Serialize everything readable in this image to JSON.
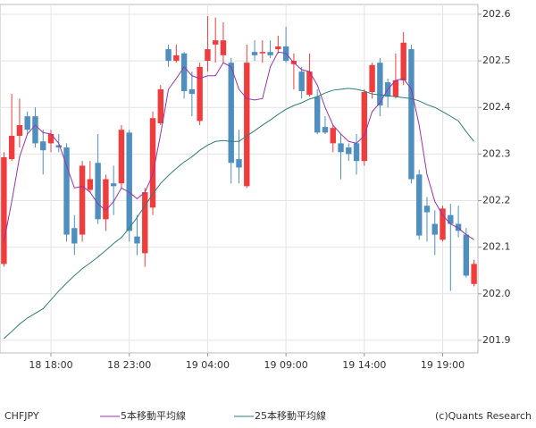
{
  "chart_data": {
    "type": "candlestick",
    "symbol": "CHFJPY",
    "credit": "(c)Quants Research",
    "categories": [
      null,
      null,
      null,
      null,
      null,
      null,
      "18 18:00",
      null,
      null,
      null,
      null,
      null,
      null,
      null,
      null,
      null,
      "18 23:00",
      null,
      null,
      null,
      null,
      null,
      null,
      null,
      null,
      null,
      "19 04:00",
      null,
      null,
      null,
      null,
      null,
      null,
      null,
      null,
      null,
      "19 09:00",
      null,
      null,
      null,
      null,
      null,
      null,
      null,
      null,
      null,
      "19 14:00",
      null,
      null,
      null,
      null,
      null,
      null,
      null,
      null,
      null,
      "19 19:00",
      null,
      null,
      null,
      null
    ],
    "up_color": "#f03c3c",
    "down_color": "#4f8fc0",
    "open": [
      202.064,
      202.289,
      202.339,
      202.381,
      202.381,
      202.327,
      202.323,
      202.319,
      202.314,
      202.141,
      202.127,
      202.223,
      202.281,
      202.16,
      202.237,
      202.237,
      202.346,
      202.123,
      202.087,
      202.185,
      202.366,
      202.525,
      202.5,
      202.516,
      202.439,
      202.371,
      202.5,
      202.535,
      202.512,
      202.496,
      202.289,
      202.231,
      202.519,
      202.516,
      202.519,
      202.525,
      202.531,
      202.493,
      202.477,
      202.427,
      202.423,
      202.358,
      202.323,
      202.323,
      202.314,
      202.323,
      202.285,
      202.433,
      202.496,
      202.454,
      202.423,
      202.458,
      202.525,
      202.256,
      202.189,
      202.15,
      202.116,
      202.169,
      202.15,
      202.127,
      202.021
    ],
    "high": [
      202.304,
      202.429,
      202.419,
      202.391,
      202.4,
      202.352,
      202.352,
      202.343,
      202.323,
      202.169,
      202.285,
      202.285,
      202.343,
      202.256,
      202.275,
      202.362,
      202.352,
      202.169,
      202.227,
      202.391,
      202.448,
      202.535,
      202.535,
      202.519,
      202.477,
      202.496,
      202.596,
      202.593,
      202.583,
      202.506,
      202.352,
      202.535,
      202.544,
      202.544,
      202.544,
      202.554,
      202.573,
      202.516,
      202.487,
      202.516,
      202.439,
      202.381,
      202.362,
      202.343,
      202.323,
      202.343,
      202.439,
      202.496,
      202.506,
      202.462,
      202.516,
      202.562,
      202.535,
      202.266,
      202.208,
      202.179,
      202.189,
      202.193,
      202.189,
      202.141,
      202.073
    ],
    "low": [
      202.058,
      202.285,
      202.314,
      202.343,
      202.314,
      202.256,
      202.304,
      202.304,
      202.112,
      202.083,
      202.112,
      202.218,
      202.15,
      202.135,
      202.169,
      202.227,
      202.112,
      202.083,
      202.058,
      202.169,
      202.362,
      202.487,
      202.496,
      202.419,
      202.381,
      202.362,
      202.477,
      202.496,
      202.496,
      202.237,
      202.237,
      202.227,
      202.5,
      202.496,
      202.506,
      202.516,
      202.496,
      202.439,
      202.419,
      202.423,
      202.343,
      202.343,
      202.304,
      202.246,
      202.285,
      202.256,
      202.275,
      202.419,
      202.381,
      202.4,
      202.419,
      202.448,
      202.237,
      202.116,
      202.112,
      202.083,
      202.112,
      202.006,
      202.121,
      202.035,
      202.016
    ],
    "close": [
      202.293,
      202.339,
      202.362,
      202.352,
      202.323,
      202.308,
      202.343,
      202.314,
      202.127,
      202.108,
      202.275,
      202.246,
      202.16,
      202.246,
      202.231,
      202.352,
      202.135,
      202.108,
      202.218,
      202.377,
      202.439,
      202.5,
      202.512,
      202.435,
      202.429,
      202.487,
      202.525,
      202.544,
      202.544,
      202.281,
      202.271,
      202.496,
      202.512,
      202.519,
      202.512,
      202.531,
      202.5,
      202.5,
      202.435,
      202.477,
      202.346,
      202.346,
      202.356,
      202.304,
      202.3,
      202.285,
      202.433,
      202.491,
      202.404,
      202.423,
      202.458,
      202.539,
      202.246,
      202.125,
      202.175,
      202.127,
      202.183,
      202.15,
      202.135,
      202.039,
      202.064
    ],
    "series": [
      {
        "name": "5本移動平均線",
        "color": "#9933aa",
        "values": [
          202.112,
          202.198,
          202.294,
          202.343,
          202.362,
          202.346,
          202.343,
          202.323,
          202.275,
          202.227,
          202.231,
          202.218,
          202.193,
          202.179,
          202.198,
          202.227,
          202.218,
          202.204,
          202.218,
          202.256,
          202.343,
          202.439,
          202.462,
          202.487,
          202.468,
          202.462,
          202.468,
          202.468,
          202.496,
          202.487,
          202.439,
          202.419,
          202.416,
          202.419,
          202.487,
          202.519,
          202.516,
          202.496,
          202.481,
          202.477,
          202.448,
          202.4,
          202.362,
          202.343,
          202.327,
          202.323,
          202.339,
          202.391,
          202.41,
          202.439,
          202.458,
          202.462,
          202.439,
          202.362,
          202.256,
          202.198,
          202.169,
          202.15,
          202.141,
          202.127,
          202.116
        ]
      },
      {
        "name": "25本移動平均線",
        "color": "#2e7d7a",
        "values": [
          201.904,
          201.919,
          201.935,
          201.948,
          201.958,
          201.968,
          201.987,
          202.006,
          202.023,
          202.039,
          202.054,
          202.066,
          202.079,
          202.093,
          202.108,
          202.121,
          202.141,
          202.164,
          202.189,
          202.214,
          202.237,
          202.254,
          202.269,
          202.283,
          202.294,
          202.308,
          202.319,
          202.327,
          202.329,
          202.327,
          202.327,
          202.339,
          202.35,
          202.362,
          202.373,
          202.385,
          202.396,
          202.404,
          202.41,
          202.418,
          202.423,
          202.431,
          202.437,
          202.439,
          202.441,
          202.439,
          202.435,
          202.429,
          202.427,
          202.425,
          202.423,
          202.421,
          202.419,
          202.414,
          202.406,
          202.4,
          202.391,
          202.381,
          202.371,
          202.348,
          202.327
        ]
      }
    ],
    "ylim": [
      201.873,
      202.621
    ],
    "yticks": [
      201.9,
      {
        "value": 202,
        "label": "202.0"
      },
      202.1,
      202.2,
      202.3,
      202.4,
      202.5,
      202.6
    ],
    "grid": true
  }
}
